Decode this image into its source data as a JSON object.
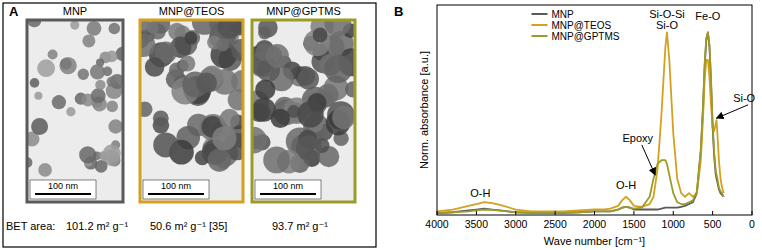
{
  "panel_a": {
    "label": "A",
    "bet_prefix": "BET area:",
    "images": [
      {
        "title": "MNP",
        "scale_bar": "100 nm",
        "bet_area": "101.2 m² g⁻¹",
        "color": "#5a5a5a"
      },
      {
        "title": "MNP@TEOS",
        "scale_bar": "100 nm",
        "bet_area": "50.6 m² g⁻¹ [35]",
        "color": "#d4a020"
      },
      {
        "title": "MNP@GPTMS",
        "scale_bar": "100 nm",
        "bet_area": "93.7 m² g⁻¹",
        "color": "#9b9b2a"
      }
    ]
  },
  "chart_data": {
    "type": "line",
    "title": "B",
    "x_label": "Wave number [cm⁻¹]",
    "y_label": "Norm. absorbance [a.u.]",
    "x": [
      4000,
      3800,
      3600,
      3500,
      3400,
      3300,
      3200,
      3000,
      2800,
      2600,
      2400,
      2200,
      2000,
      1900,
      1800,
      1700,
      1650,
      1600,
      1550,
      1500,
      1400,
      1300,
      1250,
      1200,
      1150,
      1100,
      1080,
      1050,
      1000,
      950,
      900,
      850,
      800,
      750,
      700,
      650,
      620,
      600,
      580,
      560,
      540,
      520,
      500,
      480,
      460,
      450,
      440,
      420,
      400,
      380,
      360
    ],
    "series": [
      {
        "name": "MNP",
        "color": "#5a5a5a",
        "values": [
          0.01,
          0.015,
          0.025,
          0.03,
          0.035,
          0.03,
          0.025,
          0.015,
          0.012,
          0.012,
          0.012,
          0.015,
          0.02,
          0.02,
          0.02,
          0.03,
          0.04,
          0.045,
          0.04,
          0.03,
          0.03,
          0.03,
          0.03,
          0.03,
          0.035,
          0.04,
          0.04,
          0.04,
          0.04,
          0.04,
          0.045,
          0.05,
          0.06,
          0.07,
          0.12,
          0.35,
          0.6,
          0.82,
          0.96,
          1.0,
          0.92,
          0.72,
          0.48,
          0.32,
          0.22,
          0.2,
          0.18,
          0.14,
          0.12,
          0.11,
          0.1
        ]
      },
      {
        "name": "MNP@TEOS",
        "color": "#d4a020",
        "values": [
          0.02,
          0.03,
          0.05,
          0.06,
          0.07,
          0.065,
          0.055,
          0.03,
          0.02,
          0.02,
          0.02,
          0.025,
          0.03,
          0.03,
          0.035,
          0.05,
          0.08,
          0.1,
          0.08,
          0.05,
          0.045,
          0.06,
          0.1,
          0.25,
          0.55,
          0.92,
          1.0,
          0.85,
          0.45,
          0.2,
          0.12,
          0.1,
          0.12,
          0.1,
          0.12,
          0.3,
          0.55,
          0.75,
          0.85,
          0.85,
          0.75,
          0.6,
          0.48,
          0.46,
          0.5,
          0.52,
          0.45,
          0.3,
          0.2,
          0.15,
          0.12
        ]
      },
      {
        "name": "MNP@GPTMS",
        "color": "#9b9b2a",
        "values": [
          0.01,
          0.015,
          0.02,
          0.025,
          0.03,
          0.028,
          0.024,
          0.015,
          0.012,
          0.012,
          0.012,
          0.015,
          0.02,
          0.02,
          0.02,
          0.03,
          0.04,
          0.045,
          0.04,
          0.035,
          0.04,
          0.1,
          0.2,
          0.28,
          0.3,
          0.3,
          0.28,
          0.22,
          0.12,
          0.07,
          0.06,
          0.06,
          0.07,
          0.08,
          0.13,
          0.36,
          0.62,
          0.84,
          0.97,
          1.0,
          0.93,
          0.74,
          0.5,
          0.34,
          0.24,
          0.22,
          0.2,
          0.15,
          0.13,
          0.12,
          0.1
        ]
      }
    ],
    "xlim": [
      4000,
      0
    ],
    "xticks": [
      4000,
      3500,
      3000,
      2500,
      2000,
      1500,
      1000,
      500,
      0
    ],
    "ylim": [
      0,
      1.15
    ],
    "tick_labels": "x",
    "grid": false,
    "legend": "upper center",
    "annotations": [
      {
        "text": "O-H",
        "x": 3450,
        "y": 0.1
      },
      {
        "text": "O-H",
        "x": 1600,
        "y": 0.14
      },
      {
        "text": "Epoxy",
        "x": 1450,
        "y": 0.4,
        "point": [
          1230,
          0.22
        ]
      },
      {
        "text": "Si-O-Si",
        "x": 1080,
        "y": 1.08
      },
      {
        "text": "Si-O",
        "x": 1080,
        "y": 1.02
      },
      {
        "text": "Fe-O",
        "x": 560,
        "y": 1.07
      },
      {
        "text": "Si-O",
        "x": 100,
        "y": 0.62,
        "point": [
          450,
          0.53
        ]
      }
    ]
  }
}
